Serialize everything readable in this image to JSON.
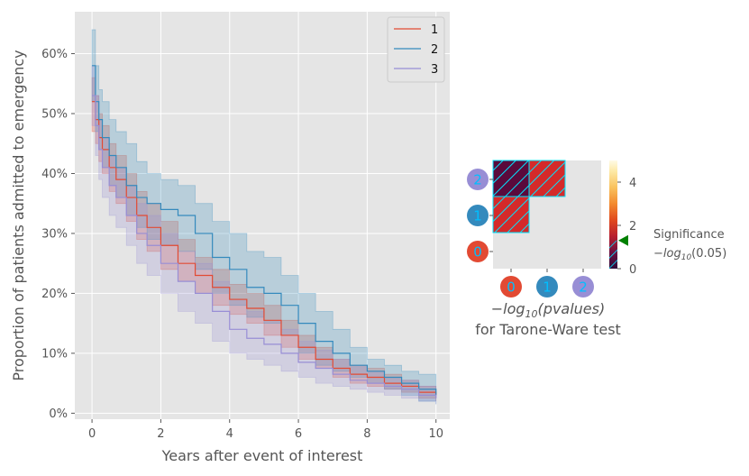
{
  "colors": {
    "panel_bg": "#e5e5e5",
    "grid": "#ffffff",
    "series": [
      "#e24a33",
      "#348abd",
      "#988ed5"
    ],
    "hatch_cell": "#d42a2a",
    "hatch_cell_dark": "#5a0a3c",
    "cell_edge": "#00e5ff",
    "marker": "#008000"
  },
  "chart_data": [
    {
      "type": "line",
      "subtype": "step",
      "xlabel": "Years after event of interest",
      "ylabel": "Proportion of patients admitted to emergency",
      "xlim": [
        -0.5,
        10.4
      ],
      "ylim": [
        -0.01,
        0.67
      ],
      "xticks": [
        0,
        2,
        4,
        6,
        8,
        10
      ],
      "xtick_labels": [
        "0",
        "2",
        "4",
        "6",
        "8",
        "10"
      ],
      "yticks": [
        0,
        0.1,
        0.2,
        0.3,
        0.4,
        0.5,
        0.6
      ],
      "ytick_labels": [
        "0%",
        "10%",
        "20%",
        "30%",
        "40%",
        "50%",
        "60%"
      ],
      "grid": true,
      "legend_position": "top-right",
      "series": [
        {
          "name": "1",
          "color": "#e24a33",
          "x": [
            0,
            0.1,
            0.2,
            0.3,
            0.5,
            0.7,
            1.0,
            1.3,
            1.6,
            2.0,
            2.5,
            3.0,
            3.5,
            4.0,
            4.5,
            5.0,
            5.5,
            6.0,
            6.5,
            7.0,
            7.5,
            8.0,
            8.5,
            9.0,
            9.5,
            10.0
          ],
          "y": [
            0.52,
            0.49,
            0.46,
            0.44,
            0.41,
            0.39,
            0.36,
            0.33,
            0.31,
            0.28,
            0.25,
            0.23,
            0.21,
            0.19,
            0.175,
            0.155,
            0.13,
            0.11,
            0.09,
            0.075,
            0.065,
            0.06,
            0.05,
            0.045,
            0.035,
            0.03
          ],
          "ci_lower": [
            0.47,
            0.45,
            0.42,
            0.4,
            0.37,
            0.35,
            0.32,
            0.29,
            0.27,
            0.24,
            0.22,
            0.2,
            0.18,
            0.165,
            0.15,
            0.13,
            0.11,
            0.09,
            0.075,
            0.06,
            0.05,
            0.045,
            0.04,
            0.035,
            0.025,
            0.02
          ],
          "ci_upper": [
            0.56,
            0.53,
            0.5,
            0.48,
            0.45,
            0.43,
            0.4,
            0.37,
            0.35,
            0.32,
            0.29,
            0.26,
            0.24,
            0.215,
            0.2,
            0.18,
            0.155,
            0.13,
            0.11,
            0.09,
            0.08,
            0.075,
            0.065,
            0.055,
            0.045,
            0.04
          ]
        },
        {
          "name": "2",
          "color": "#348abd",
          "x": [
            0,
            0.1,
            0.2,
            0.3,
            0.5,
            0.7,
            1.0,
            1.3,
            1.6,
            2.0,
            2.5,
            3.0,
            3.5,
            4.0,
            4.5,
            5.0,
            5.5,
            6.0,
            6.5,
            7.0,
            7.5,
            8.0,
            8.5,
            9.0,
            9.5,
            10.0
          ],
          "y": [
            0.58,
            0.52,
            0.49,
            0.46,
            0.43,
            0.41,
            0.38,
            0.36,
            0.35,
            0.34,
            0.33,
            0.3,
            0.26,
            0.24,
            0.21,
            0.2,
            0.18,
            0.15,
            0.12,
            0.1,
            0.08,
            0.07,
            0.06,
            0.05,
            0.04,
            0.03
          ],
          "ci_lower": [
            0.52,
            0.47,
            0.44,
            0.41,
            0.38,
            0.36,
            0.33,
            0.31,
            0.29,
            0.28,
            0.27,
            0.24,
            0.2,
            0.18,
            0.16,
            0.15,
            0.13,
            0.1,
            0.08,
            0.07,
            0.06,
            0.05,
            0.04,
            0.03,
            0.02,
            0.015
          ],
          "ci_upper": [
            0.64,
            0.58,
            0.54,
            0.52,
            0.49,
            0.47,
            0.45,
            0.42,
            0.4,
            0.39,
            0.38,
            0.35,
            0.32,
            0.3,
            0.27,
            0.26,
            0.23,
            0.2,
            0.17,
            0.14,
            0.11,
            0.09,
            0.08,
            0.07,
            0.065,
            0.06
          ]
        },
        {
          "name": "3",
          "color": "#988ed5",
          "x": [
            0,
            0.1,
            0.2,
            0.3,
            0.5,
            0.7,
            1.0,
            1.3,
            1.6,
            2.0,
            2.5,
            3.0,
            3.5,
            4.0,
            4.5,
            5.0,
            5.5,
            6.0,
            6.5,
            7.0,
            7.5,
            8.0,
            8.5,
            9.0,
            9.5,
            10.0
          ],
          "y": [
            0.53,
            0.48,
            0.44,
            0.41,
            0.38,
            0.36,
            0.33,
            0.3,
            0.28,
            0.25,
            0.22,
            0.2,
            0.17,
            0.14,
            0.125,
            0.115,
            0.1,
            0.085,
            0.075,
            0.065,
            0.055,
            0.05,
            0.045,
            0.04,
            0.03,
            0.025
          ],
          "ci_lower": [
            0.48,
            0.43,
            0.39,
            0.36,
            0.33,
            0.31,
            0.28,
            0.25,
            0.23,
            0.2,
            0.17,
            0.15,
            0.12,
            0.1,
            0.09,
            0.08,
            0.07,
            0.06,
            0.05,
            0.045,
            0.04,
            0.035,
            0.03,
            0.025,
            0.02,
            0.015
          ],
          "ci_upper": [
            0.58,
            0.53,
            0.49,
            0.46,
            0.43,
            0.41,
            0.38,
            0.35,
            0.33,
            0.3,
            0.27,
            0.25,
            0.22,
            0.19,
            0.17,
            0.155,
            0.14,
            0.12,
            0.105,
            0.09,
            0.08,
            0.07,
            0.06,
            0.055,
            0.045,
            0.04
          ]
        }
      ]
    },
    {
      "type": "heatmap",
      "title_math": "−log",
      "title_sub": "10",
      "title_rest": "(pvalues)",
      "title_line2": "for Tarone-Ware test",
      "row_labels": [
        "2",
        "1",
        "0"
      ],
      "col_labels": [
        "0",
        "1",
        "2"
      ],
      "label_colors": [
        "#988ed5",
        "#348abd",
        "#e24a33"
      ],
      "cells": [
        {
          "row": "2",
          "col": "0",
          "hatched": true,
          "tone": "dark"
        },
        {
          "row": "2",
          "col": "1",
          "hatched": true,
          "tone": "red"
        },
        {
          "row": "1",
          "col": "0",
          "hatched": true,
          "tone": "red"
        }
      ],
      "colorbar": {
        "min": 0,
        "max": 5,
        "ticks": [
          0,
          2,
          4
        ],
        "tick_labels": [
          "0",
          "2",
          "4"
        ],
        "significance_value": 1.3
      },
      "significance_label": "Significance",
      "significance_math_a": "−log",
      "significance_math_sub": "10",
      "significance_math_b": "(0.05)"
    }
  ]
}
